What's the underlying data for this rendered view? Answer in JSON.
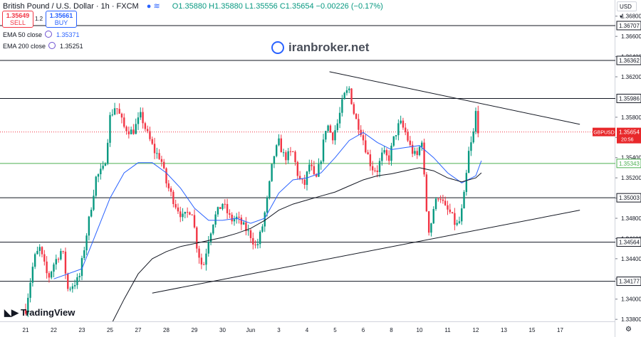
{
  "header": {
    "title": "British Pound / U.S. Dollar · 1h · FXCM",
    "ohlc": "O1.35880 H1.35880 L1.35556 C1.35654 −0.00226 (−0.17%)",
    "sell": {
      "price": "1.35649",
      "label": "SELL"
    },
    "buy": {
      "price": "1.35661",
      "label": "BUY"
    },
    "spread": "1.2"
  },
  "indicators": [
    {
      "label": "EMA 50 close",
      "value": "1.35371"
    },
    {
      "label": "EMA 200 close",
      "value": "1.35251"
    }
  ],
  "watermark": "iranbroker.net",
  "brand": "TradingView",
  "currency": "USD",
  "colors": {
    "up": "#089981",
    "down": "#f23645",
    "ema50": "#2962ff",
    "ema200": "#131722",
    "support": "#4caf50",
    "symbol_tag": "#e8282b"
  },
  "chart_data": {
    "type": "candlestick",
    "symbol": "GBPUSD",
    "current_price": "1.35654",
    "countdown": "20:56",
    "ylim": [
      1.3378,
      1.3696
    ],
    "y_ticks": [
      "1.36800",
      "1.36600",
      "1.36400",
      "1.36200",
      "1.35800",
      "1.35600",
      "1.35400",
      "1.35200",
      "1.35000",
      "1.34800",
      "1.34600",
      "1.34400",
      "1.34200",
      "1.34000",
      "1.33800"
    ],
    "x_ticks": [
      "21",
      "22",
      "23",
      "25",
      "27",
      "28",
      "29",
      "30",
      "Jun",
      "3",
      "4",
      "5",
      "6",
      "8",
      "10",
      "11",
      "12",
      "13",
      "15",
      "17"
    ],
    "x_tick_days": [
      0,
      1,
      2,
      3,
      4,
      5,
      6,
      7,
      8,
      9,
      10,
      11,
      12,
      13,
      14,
      15,
      16,
      17,
      18,
      19
    ],
    "last_data_day": 16.1,
    "horizontal_levels": [
      {
        "price": 1.36707,
        "label": "1.36707",
        "color": "#131722"
      },
      {
        "price": 1.36362,
        "label": "1.36362",
        "color": "#131722"
      },
      {
        "price": 1.35986,
        "label": "1.35986",
        "color": "#131722"
      },
      {
        "price": 1.35343,
        "label": "1.35343",
        "color": "#4caf50"
      },
      {
        "price": 1.35003,
        "label": "1.35003",
        "color": "#131722"
      },
      {
        "price": 1.34564,
        "label": "1.34564",
        "color": "#131722"
      },
      {
        "price": 1.34177,
        "label": "1.34177",
        "color": "#131722"
      }
    ],
    "trendlines": [
      {
        "x1": 10.8,
        "y1": 1.3625,
        "x2": 19.7,
        "y2": 1.3573
      },
      {
        "x1": 4.5,
        "y1": 1.3406,
        "x2": 19.7,
        "y2": 1.3488
      }
    ],
    "price_path": [
      [
        0.0,
        1.339
      ],
      [
        0.3,
        1.344
      ],
      [
        0.5,
        1.345
      ],
      [
        0.8,
        1.342
      ],
      [
        1.0,
        1.3435
      ],
      [
        1.3,
        1.345
      ],
      [
        1.5,
        1.341
      ],
      [
        1.9,
        1.342
      ],
      [
        2.2,
        1.347
      ],
      [
        2.5,
        1.352
      ],
      [
        2.8,
        1.353
      ],
      [
        3.0,
        1.358
      ],
      [
        3.2,
        1.3592
      ],
      [
        3.5,
        1.357
      ],
      [
        3.8,
        1.3565
      ],
      [
        4.1,
        1.3582
      ],
      [
        4.3,
        1.3565
      ],
      [
        4.6,
        1.3545
      ],
      [
        4.8,
        1.354
      ],
      [
        5.0,
        1.3515
      ],
      [
        5.3,
        1.3495
      ],
      [
        5.6,
        1.348
      ],
      [
        5.9,
        1.349
      ],
      [
        6.1,
        1.345
      ],
      [
        6.3,
        1.343
      ],
      [
        6.5,
        1.346
      ],
      [
        6.7,
        1.348
      ],
      [
        7.0,
        1.3495
      ],
      [
        7.3,
        1.3478
      ],
      [
        7.5,
        1.348
      ],
      [
        7.8,
        1.347
      ],
      [
        8.0,
        1.3463
      ],
      [
        8.2,
        1.345
      ],
      [
        8.4,
        1.347
      ],
      [
        8.6,
        1.35
      ],
      [
        8.8,
        1.354
      ],
      [
        9.0,
        1.3555
      ],
      [
        9.2,
        1.354
      ],
      [
        9.5,
        1.3545
      ],
      [
        9.7,
        1.352
      ],
      [
        9.9,
        1.3512
      ],
      [
        10.1,
        1.3535
      ],
      [
        10.3,
        1.3515
      ],
      [
        10.5,
        1.354
      ],
      [
        10.7,
        1.3575
      ],
      [
        10.9,
        1.356
      ],
      [
        11.1,
        1.3575
      ],
      [
        11.3,
        1.36
      ],
      [
        11.5,
        1.3608
      ],
      [
        11.7,
        1.358
      ],
      [
        11.9,
        1.3568
      ],
      [
        12.1,
        1.3548
      ],
      [
        12.3,
        1.353
      ],
      [
        12.5,
        1.3528
      ],
      [
        12.7,
        1.3545
      ],
      [
        12.9,
        1.3538
      ],
      [
        13.1,
        1.356
      ],
      [
        13.3,
        1.3575
      ],
      [
        13.5,
        1.3565
      ],
      [
        13.7,
        1.3548
      ],
      [
        13.9,
        1.354
      ],
      [
        14.1,
        1.356
      ],
      [
        14.2,
        1.35
      ],
      [
        14.35,
        1.3465
      ],
      [
        14.5,
        1.349
      ],
      [
        14.7,
        1.3505
      ],
      [
        14.9,
        1.349
      ],
      [
        15.1,
        1.3485
      ],
      [
        15.3,
        1.3472
      ],
      [
        15.45,
        1.3478
      ],
      [
        15.6,
        1.3505
      ],
      [
        15.75,
        1.3545
      ],
      [
        15.9,
        1.356
      ],
      [
        16.0,
        1.3585
      ],
      [
        16.1,
        1.3565
      ]
    ],
    "ema50_path": [
      [
        1.0,
        1.342
      ],
      [
        2.0,
        1.343
      ],
      [
        2.5,
        1.3465
      ],
      [
        3.0,
        1.35
      ],
      [
        3.5,
        1.3525
      ],
      [
        4.0,
        1.3535
      ],
      [
        4.5,
        1.3535
      ],
      [
        5.0,
        1.3525
      ],
      [
        5.5,
        1.351
      ],
      [
        6.0,
        1.349
      ],
      [
        6.5,
        1.3478
      ],
      [
        7.0,
        1.3478
      ],
      [
        7.5,
        1.348
      ],
      [
        8.0,
        1.3475
      ],
      [
        8.5,
        1.348
      ],
      [
        9.0,
        1.3505
      ],
      [
        9.5,
        1.3518
      ],
      [
        10.0,
        1.352
      ],
      [
        10.5,
        1.3525
      ],
      [
        11.0,
        1.354
      ],
      [
        11.5,
        1.3557
      ],
      [
        12.0,
        1.3565
      ],
      [
        12.5,
        1.3555
      ],
      [
        13.0,
        1.3548
      ],
      [
        13.5,
        1.355
      ],
      [
        14.0,
        1.3552
      ],
      [
        14.5,
        1.354
      ],
      [
        15.0,
        1.3525
      ],
      [
        15.5,
        1.3515
      ],
      [
        16.0,
        1.3522
      ],
      [
        16.2,
        1.3537
      ]
    ],
    "ema200_path": [
      [
        3.1,
        1.3378
      ],
      [
        3.5,
        1.34
      ],
      [
        4.0,
        1.3425
      ],
      [
        4.5,
        1.344
      ],
      [
        5.0,
        1.3447
      ],
      [
        5.5,
        1.3452
      ],
      [
        6.0,
        1.3455
      ],
      [
        6.5,
        1.3458
      ],
      [
        7.0,
        1.3461
      ],
      [
        7.5,
        1.3465
      ],
      [
        8.0,
        1.347
      ],
      [
        8.5,
        1.3478
      ],
      [
        9.0,
        1.3488
      ],
      [
        9.5,
        1.3494
      ],
      [
        10.0,
        1.3498
      ],
      [
        10.5,
        1.3502
      ],
      [
        11.0,
        1.3506
      ],
      [
        11.5,
        1.3512
      ],
      [
        12.0,
        1.3518
      ],
      [
        12.5,
        1.3522
      ],
      [
        13.0,
        1.3524
      ],
      [
        13.5,
        1.3527
      ],
      [
        14.0,
        1.353
      ],
      [
        14.5,
        1.3527
      ],
      [
        15.0,
        1.352
      ],
      [
        15.5,
        1.3516
      ],
      [
        16.0,
        1.352
      ],
      [
        16.2,
        1.3525
      ]
    ]
  }
}
